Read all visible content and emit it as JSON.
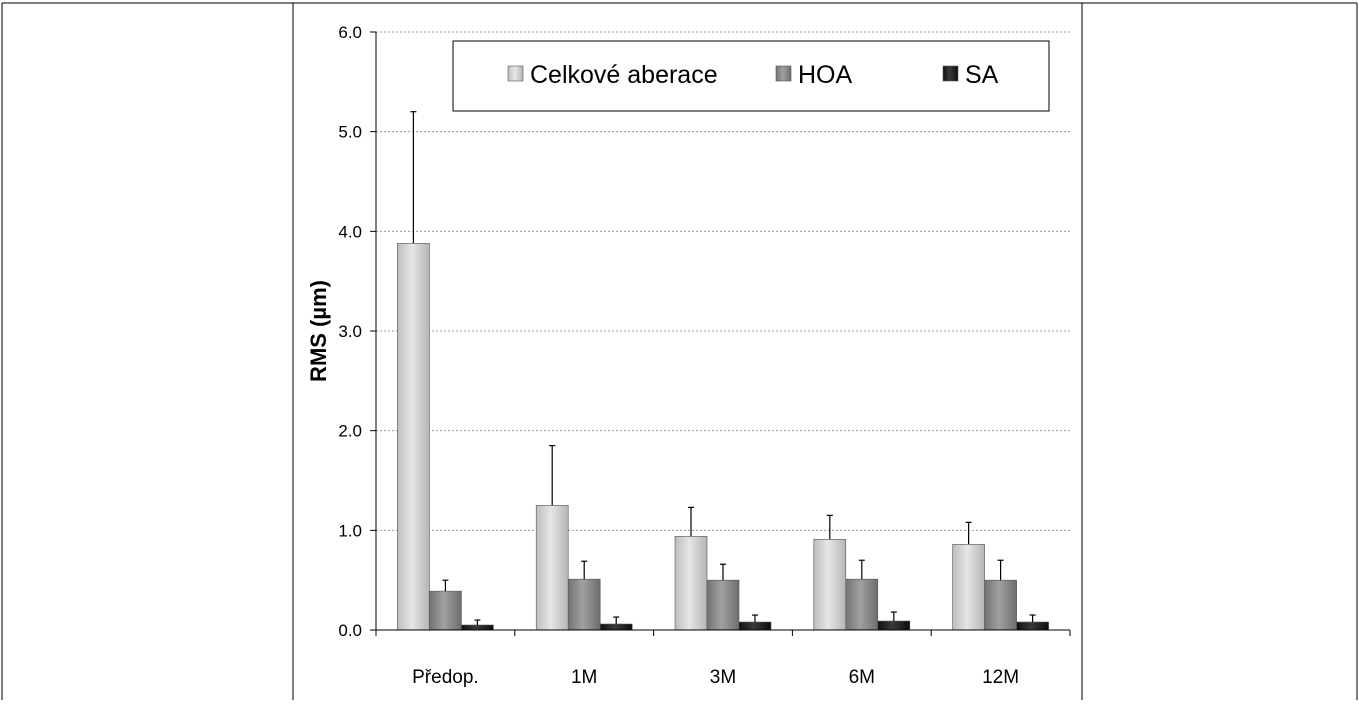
{
  "chart_data": {
    "type": "bar",
    "title": "",
    "xlabel": "",
    "ylabel": "RMS (µm)",
    "ylim": [
      0,
      6
    ],
    "yticks": [
      "0.0",
      "1.0",
      "2.0",
      "3.0",
      "4.0",
      "5.0",
      "6.0"
    ],
    "grid": true,
    "legend_position": "top",
    "categories": [
      "Předop.",
      "1M",
      "3M",
      "6M",
      "12M"
    ],
    "series": [
      {
        "name": "Celkové aberace",
        "color": "#d4d4d4",
        "values": [
          3.88,
          1.25,
          0.94,
          0.91,
          0.86
        ],
        "errors": [
          1.32,
          0.6,
          0.29,
          0.24,
          0.22
        ]
      },
      {
        "name": "HOA",
        "color": "#8c8c8c",
        "values": [
          0.39,
          0.51,
          0.5,
          0.51,
          0.5
        ],
        "errors": [
          0.11,
          0.18,
          0.16,
          0.19,
          0.2
        ]
      },
      {
        "name": "SA",
        "color": "#1e1e1e",
        "values": [
          0.05,
          0.06,
          0.08,
          0.09,
          0.08
        ],
        "errors": [
          0.05,
          0.07,
          0.07,
          0.09,
          0.07
        ]
      }
    ]
  }
}
